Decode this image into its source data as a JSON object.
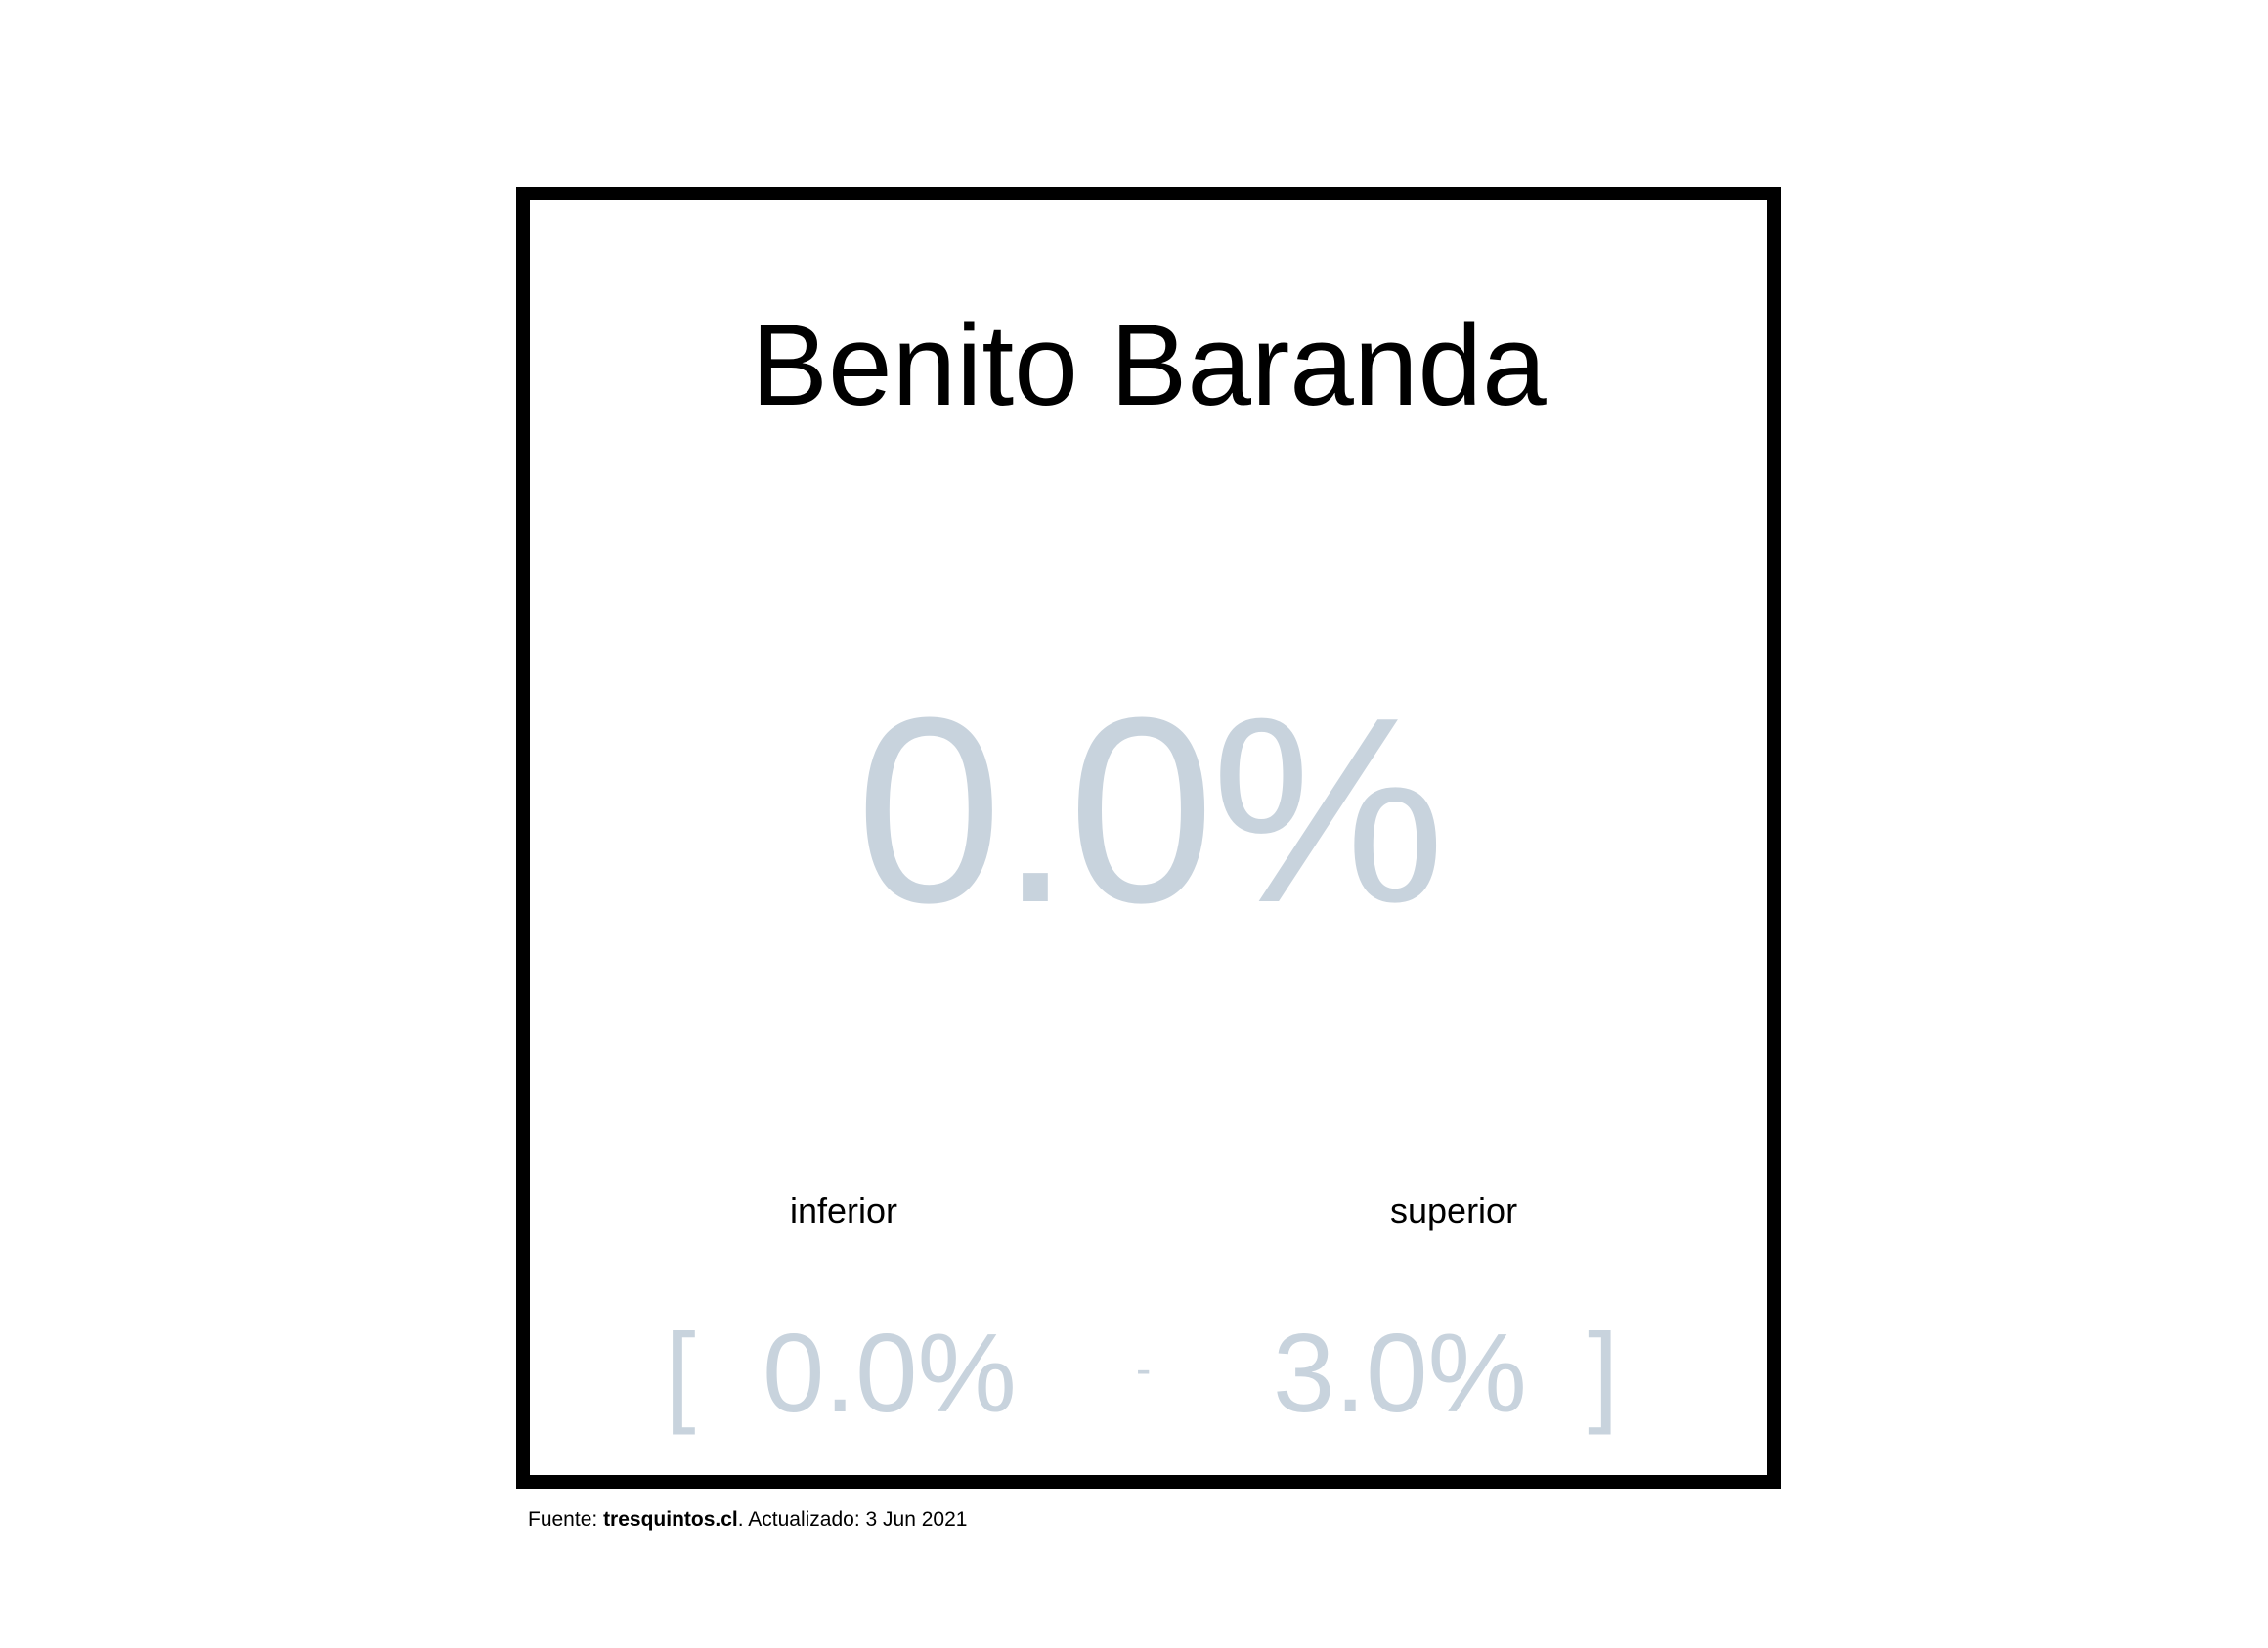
{
  "card": {
    "title": "Benito Baranda",
    "main_value": "0.0%",
    "range": {
      "lower_label": "inferior",
      "upper_label": "superior",
      "bracket_open": "[",
      "lower_value": "0.0%",
      "separator": "-",
      "upper_value": "3.0%",
      "bracket_close": "]"
    }
  },
  "footer": {
    "prefix": "Fuente: ",
    "site": "tresquintos.cl",
    "suffix": ". Actualizado: 3 Jun 2021"
  },
  "colors": {
    "value_color": "#c8d3dd",
    "border_color": "#000000"
  }
}
